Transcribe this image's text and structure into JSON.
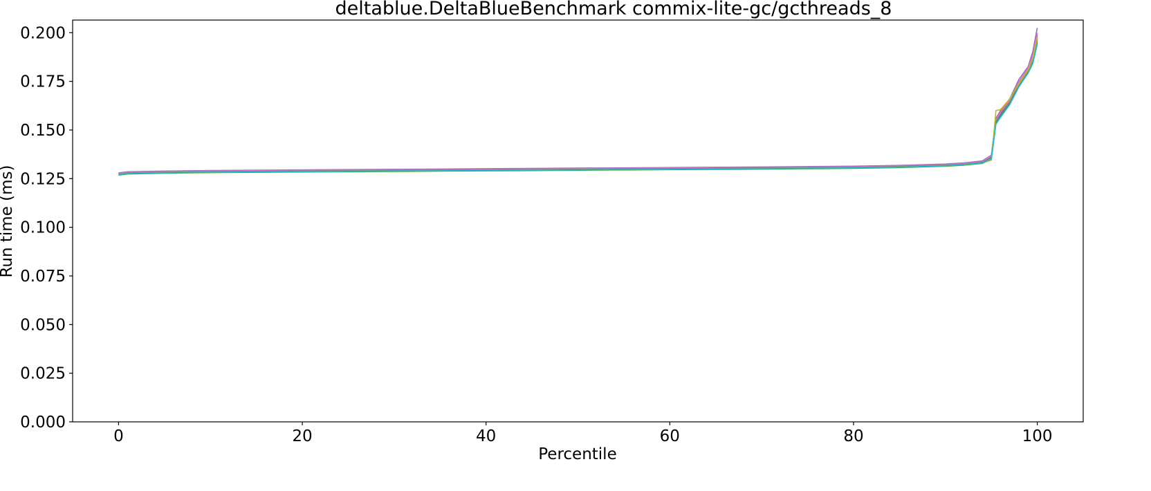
{
  "chart_data": {
    "type": "line",
    "title": "deltablue.DeltaBlueBenchmark commix-lite-gc/gcthreads_8",
    "xlabel": "Percentile",
    "ylabel": "Run time (ms)",
    "xlim": [
      -5,
      105
    ],
    "ylim": [
      0,
      0.2065
    ],
    "xticks": [
      0,
      20,
      40,
      60,
      80,
      100
    ],
    "xtick_labels": [
      "0",
      "20",
      "40",
      "60",
      "80",
      "100"
    ],
    "yticks": [
      0,
      0.025,
      0.05,
      0.075,
      0.1,
      0.125,
      0.15,
      0.175,
      0.2
    ],
    "ytick_labels": [
      "0.000",
      "0.025",
      "0.050",
      "0.075",
      "0.100",
      "0.125",
      "0.150",
      "0.175",
      "0.200"
    ],
    "grid": false,
    "legend": false,
    "x": [
      0,
      1,
      5,
      10,
      20,
      30,
      40,
      50,
      60,
      70,
      80,
      85,
      90,
      92,
      94,
      95,
      95.5,
      96,
      97,
      98,
      99,
      99.5,
      100
    ],
    "series": [
      {
        "color": "#1f77b4",
        "values": [
          0.1272,
          0.1278,
          0.1282,
          0.1285,
          0.1288,
          0.1291,
          0.1294,
          0.1297,
          0.13,
          0.1303,
          0.1307,
          0.1311,
          0.1318,
          0.1323,
          0.1332,
          0.1355,
          0.154,
          0.1575,
          0.164,
          0.173,
          0.18,
          0.185,
          0.196
        ]
      },
      {
        "color": "#ff7f0e",
        "values": [
          0.1275,
          0.128,
          0.1284,
          0.1287,
          0.129,
          0.1293,
          0.1296,
          0.1299,
          0.1302,
          0.1305,
          0.1309,
          0.1313,
          0.132,
          0.1326,
          0.1336,
          0.1362,
          0.155,
          0.159,
          0.165,
          0.174,
          0.181,
          0.187,
          0.198
        ]
      },
      {
        "color": "#2ca02c",
        "values": [
          0.1268,
          0.1274,
          0.1278,
          0.1281,
          0.1284,
          0.1287,
          0.129,
          0.1293,
          0.1296,
          0.1299,
          0.1303,
          0.1307,
          0.1314,
          0.1319,
          0.1328,
          0.135,
          0.1535,
          0.157,
          0.1635,
          0.1725,
          0.1795,
          0.1845,
          0.195
        ]
      },
      {
        "color": "#d62728",
        "values": [
          0.1276,
          0.1281,
          0.1285,
          0.1288,
          0.1291,
          0.1294,
          0.1297,
          0.13,
          0.1303,
          0.1306,
          0.131,
          0.1314,
          0.1321,
          0.1327,
          0.1337,
          0.1365,
          0.1555,
          0.1595,
          0.1655,
          0.1745,
          0.1815,
          0.1875,
          0.199
        ]
      },
      {
        "color": "#9467bd",
        "values": [
          0.128,
          0.1285,
          0.1289,
          0.1292,
          0.1295,
          0.1298,
          0.1301,
          0.1304,
          0.1307,
          0.131,
          0.1314,
          0.1318,
          0.1325,
          0.1331,
          0.1341,
          0.137,
          0.156,
          0.16,
          0.166,
          0.176,
          0.1825,
          0.19,
          0.2025
        ]
      },
      {
        "color": "#8c564b",
        "values": [
          0.1274,
          0.1279,
          0.1283,
          0.1286,
          0.1289,
          0.1292,
          0.1295,
          0.1298,
          0.1301,
          0.1304,
          0.1308,
          0.1312,
          0.1319,
          0.1325,
          0.1335,
          0.136,
          0.1545,
          0.1585,
          0.1645,
          0.1735,
          0.1805,
          0.186,
          0.197
        ]
      },
      {
        "color": "#e377c2",
        "values": [
          0.1277,
          0.1282,
          0.1286,
          0.1289,
          0.1292,
          0.1295,
          0.1298,
          0.1301,
          0.1304,
          0.1307,
          0.1311,
          0.1315,
          0.1322,
          0.1328,
          0.1338,
          0.1366,
          0.1552,
          0.1592,
          0.1652,
          0.1748,
          0.1818,
          0.188,
          0.2
        ]
      },
      {
        "color": "#7f7f7f",
        "values": [
          0.1273,
          0.1279,
          0.1283,
          0.1286,
          0.1289,
          0.1292,
          0.1295,
          0.1298,
          0.1301,
          0.1304,
          0.1308,
          0.1312,
          0.1319,
          0.1324,
          0.1334,
          0.1358,
          0.1542,
          0.158,
          0.1642,
          0.1732,
          0.1802,
          0.1855,
          0.1965
        ]
      },
      {
        "color": "#bcbd22",
        "values": [
          0.1271,
          0.1276,
          0.128,
          0.1283,
          0.1286,
          0.1289,
          0.1292,
          0.1295,
          0.1298,
          0.1301,
          0.1305,
          0.1309,
          0.1316,
          0.1321,
          0.133,
          0.1345,
          0.16,
          0.1605,
          0.166,
          0.1738,
          0.1808,
          0.1865,
          0.1975
        ]
      },
      {
        "color": "#17becf",
        "values": [
          0.127,
          0.1276,
          0.128,
          0.1283,
          0.1286,
          0.1289,
          0.1292,
          0.1295,
          0.1298,
          0.1301,
          0.1305,
          0.1309,
          0.1316,
          0.1322,
          0.1331,
          0.1352,
          0.153,
          0.1565,
          0.163,
          0.1722,
          0.1792,
          0.184,
          0.194
        ]
      }
    ]
  }
}
